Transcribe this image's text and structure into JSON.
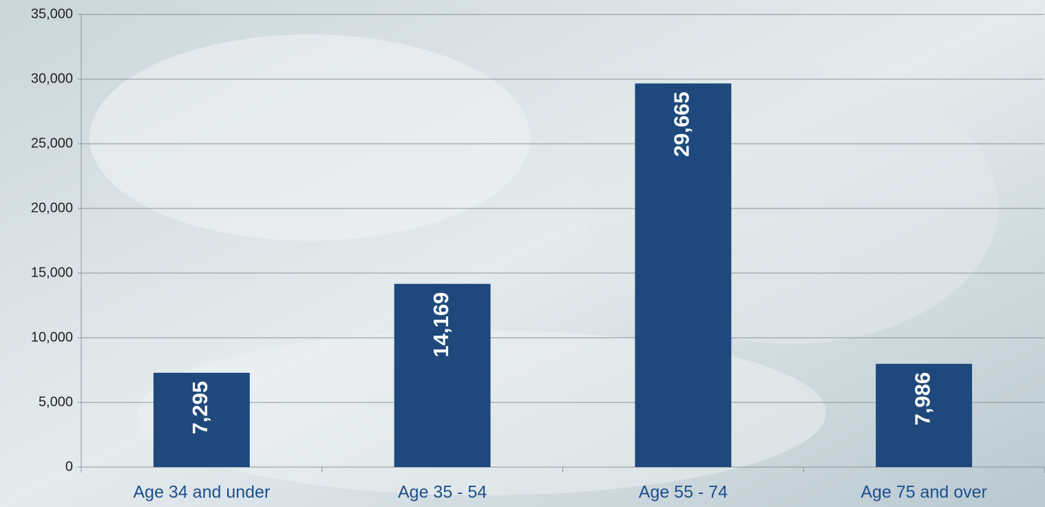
{
  "chart_data": {
    "type": "bar",
    "categories": [
      "Age 34 and under",
      "Age 35 - 54",
      "Age 55 - 74",
      "Age 75 and over"
    ],
    "values": [
      7295,
      14169,
      29665,
      7986
    ],
    "value_labels": [
      "7,295",
      "14,169",
      "29,665",
      "7,986"
    ],
    "color": "#1f497d",
    "ylim": [
      0,
      35000
    ],
    "yticks": [
      0,
      {
        "value": 5000,
        "label": "5,000"
      },
      {
        "value": 10000,
        "label": "10,000"
      },
      {
        "value": 15000,
        "label": "15,000"
      },
      {
        "value": 20000,
        "label": "20,000"
      },
      {
        "value": 25000,
        "label": "25,000"
      },
      {
        "value": 30000,
        "label": "30,000"
      },
      {
        "value": 35000,
        "label": "35,000"
      }
    ],
    "grid": true
  }
}
